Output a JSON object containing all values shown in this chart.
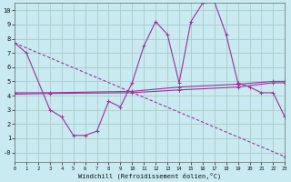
{
  "xlabel": "Windchill (Refroidissement éolien,°C)",
  "bg_color": "#c8eaf0",
  "grid_color": "#aacccc",
  "line_color": "#993399",
  "xlim": [
    0,
    23
  ],
  "ylim": [
    -0.7,
    10.5
  ],
  "xticks": [
    0,
    1,
    2,
    3,
    4,
    5,
    6,
    7,
    8,
    9,
    10,
    11,
    12,
    13,
    14,
    15,
    16,
    17,
    18,
    19,
    20,
    21,
    22,
    23
  ],
  "yticks": [
    0,
    1,
    2,
    3,
    4,
    5,
    6,
    7,
    8,
    9,
    10
  ],
  "yticklabels": [
    "-0",
    "1",
    "2",
    "3",
    "4",
    "5",
    "6",
    "7",
    "8",
    "9",
    "10"
  ],
  "line1_x": [
    0,
    1,
    3,
    4,
    5,
    6,
    7,
    8,
    9,
    10,
    11,
    12,
    13,
    14,
    15,
    16,
    17,
    18,
    19,
    20,
    21,
    22,
    23
  ],
  "line1_y": [
    7.7,
    7.0,
    3.0,
    2.5,
    1.2,
    1.2,
    1.5,
    3.6,
    3.2,
    4.9,
    7.5,
    9.2,
    8.3,
    4.9,
    9.2,
    10.5,
    10.6,
    8.3,
    4.9,
    4.6,
    4.2,
    4.2,
    2.5
  ],
  "line2_x": [
    0,
    23
  ],
  "line2_y": [
    7.7,
    -0.3
  ],
  "line3_x": [
    0,
    3,
    10,
    14,
    19,
    22,
    23
  ],
  "line3_y": [
    4.2,
    4.2,
    4.3,
    4.6,
    4.8,
    5.0,
    5.0
  ],
  "line4_x": [
    0,
    3,
    10,
    14,
    19,
    22,
    23
  ],
  "line4_y": [
    4.1,
    4.15,
    4.2,
    4.4,
    4.6,
    4.9,
    4.9
  ]
}
